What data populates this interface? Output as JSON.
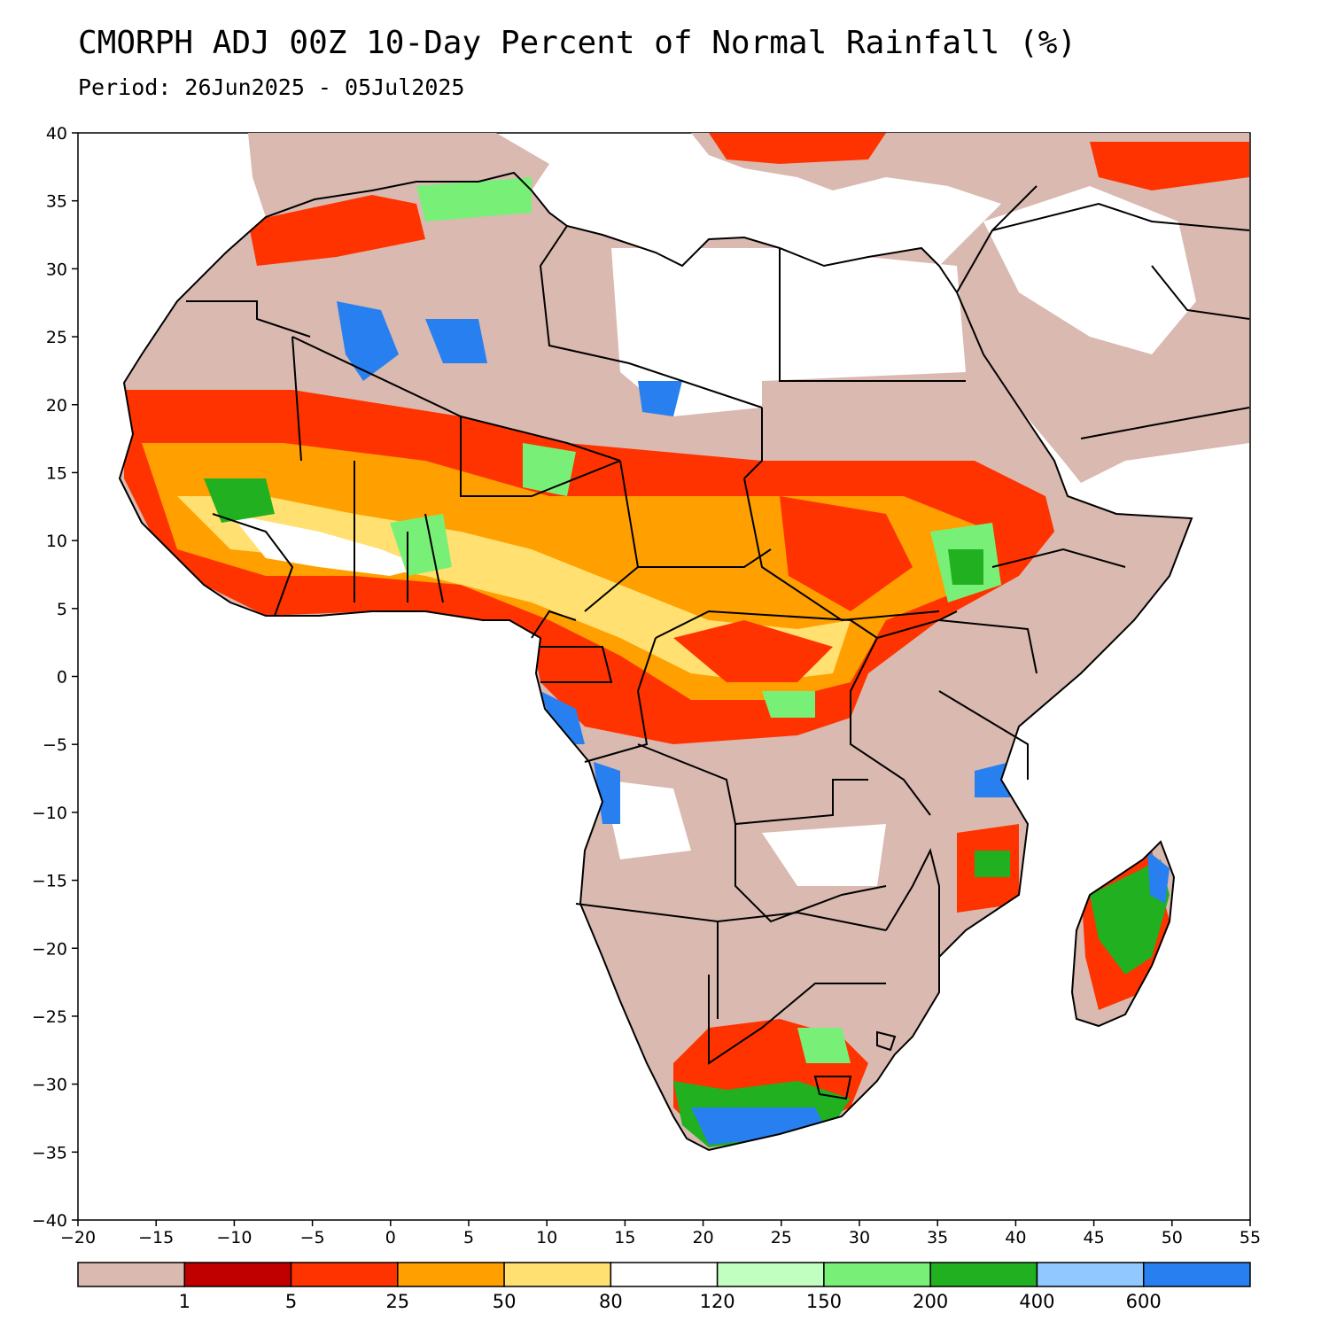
{
  "header": {
    "title": "CMORPH ADJ 00Z 10-Day Percent of Normal Rainfall (%)",
    "period": "Period: 26Jun2025 - 05Jul2025"
  },
  "map": {
    "lon_range": [
      -20,
      55
    ],
    "lat_range": [
      -40,
      40
    ],
    "x_ticks": [
      "-20",
      "-15",
      "-10",
      "-5",
      "0",
      "5",
      "10",
      "15",
      "20",
      "25",
      "30",
      "35",
      "40",
      "45",
      "50",
      "55"
    ],
    "y_ticks": [
      "40",
      "35",
      "30",
      "25",
      "20",
      "15",
      "10",
      "5",
      "0",
      "-5",
      "-10",
      "-15",
      "-20",
      "-25",
      "-30",
      "-35",
      "-40"
    ]
  },
  "colorbar": {
    "colors": [
      "#d9b9b0",
      "#c00000",
      "#ff3300",
      "#ffa000",
      "#ffe070",
      "#ffffff",
      "#c0ffc0",
      "#78f078",
      "#20b020",
      "#90c8ff",
      "#2880f0"
    ],
    "labels": [
      "1",
      "5",
      "25",
      "50",
      "80",
      "120",
      "150",
      "200",
      "400",
      "600"
    ]
  },
  "colors": {
    "land_below": "#d9b9b0",
    "deficit": "#ff3300",
    "moderate": "#ffa000",
    "near_normal": "#ffffff",
    "above": "#20b020",
    "much_above": "#2880f0",
    "border": "#000000"
  }
}
